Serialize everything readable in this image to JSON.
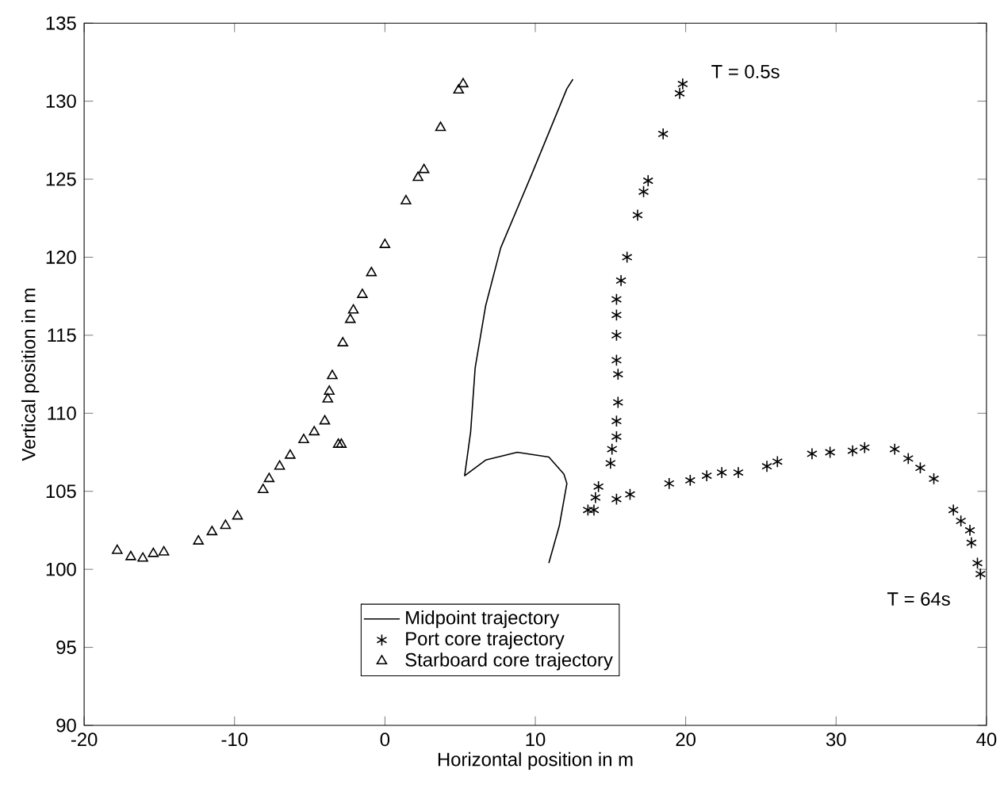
{
  "chart_data": {
    "type": "line",
    "xlabel": "Horizontal position in m",
    "ylabel": "Vertical position in m",
    "xlim": [
      -20,
      40
    ],
    "ylim": [
      90,
      135
    ],
    "xticks": [
      -20,
      -10,
      0,
      10,
      20,
      30,
      40
    ],
    "yticks": [
      90,
      95,
      100,
      105,
      110,
      115,
      120,
      125,
      130,
      135
    ],
    "grid": false,
    "legend": "bottom",
    "series": [
      {
        "name": "Midpoint trajectory",
        "color": "#000000",
        "marker": "none",
        "line_style": "solid",
        "x": [
          12.5,
          12.1,
          9.8,
          7.7,
          6.7,
          6.0,
          5.7,
          5.3,
          6.7,
          8.8,
          10.9,
          11.9,
          12.1,
          11.6,
          10.9
        ],
        "values": [
          131.4,
          130.8,
          125.4,
          120.6,
          116.9,
          112.9,
          108.8,
          106.0,
          107.0,
          107.5,
          107.2,
          106.1,
          105.5,
          102.8,
          100.4
        ]
      },
      {
        "name": "Port core trajectory",
        "type": "scatter",
        "color": "#000000",
        "marker": "cross",
        "x": [
          19.8,
          19.6,
          18.5,
          17.5,
          17.2,
          16.8,
          16.1,
          15.7,
          15.4,
          15.4,
          15.4,
          15.4,
          15.5,
          15.5,
          15.4,
          15.4,
          15.1,
          15.0,
          14.2,
          14.0,
          13.9,
          13.5,
          15.4,
          16.3,
          18.9,
          20.3,
          21.4,
          22.4,
          23.5,
          25.4,
          26.1,
          28.4,
          29.6,
          31.1,
          31.9,
          33.9,
          34.8,
          35.6,
          36.5,
          37.8,
          38.3,
          38.9,
          39.0,
          39.4,
          39.6
        ],
        "values": [
          131.1,
          130.5,
          127.9,
          124.9,
          124.2,
          122.7,
          120.0,
          118.5,
          117.3,
          116.3,
          115.0,
          113.4,
          112.5,
          110.7,
          109.5,
          108.5,
          107.7,
          106.8,
          105.3,
          104.6,
          103.8,
          103.8,
          104.5,
          104.8,
          105.5,
          105.7,
          106.0,
          106.2,
          106.2,
          106.6,
          106.9,
          107.4,
          107.5,
          107.6,
          107.8,
          107.7,
          107.1,
          106.5,
          105.8,
          103.8,
          103.1,
          102.5,
          101.7,
          100.4,
          99.7
        ]
      },
      {
        "name": "Starboard core trajectory",
        "type": "scatter",
        "color": "#000000",
        "marker": "triangle",
        "x": [
          5.2,
          4.9,
          3.7,
          2.6,
          2.2,
          1.4,
          0.0,
          -0.9,
          -1.5,
          -2.1,
          -2.3,
          -2.8,
          -3.5,
          -3.7,
          -3.8,
          -4.0,
          -3.1,
          -2.9,
          -4.7,
          -5.4,
          -6.3,
          -7.0,
          -7.7,
          -8.1,
          -9.8,
          -10.6,
          -11.5,
          -12.4,
          -14.7,
          -15.4,
          -16.1,
          -16.9,
          -17.8
        ],
        "values": [
          131.1,
          130.7,
          128.3,
          125.6,
          125.1,
          123.6,
          120.8,
          119.0,
          117.6,
          116.6,
          116.0,
          114.5,
          112.4,
          111.4,
          110.9,
          109.5,
          108.0,
          108.0,
          108.8,
          108.3,
          107.3,
          106.6,
          105.8,
          105.1,
          103.4,
          102.8,
          102.4,
          101.8,
          101.1,
          101.0,
          100.7,
          100.8,
          101.2
        ]
      }
    ],
    "annotations": [
      "T = 0.5s",
      "T = 64s"
    ]
  }
}
